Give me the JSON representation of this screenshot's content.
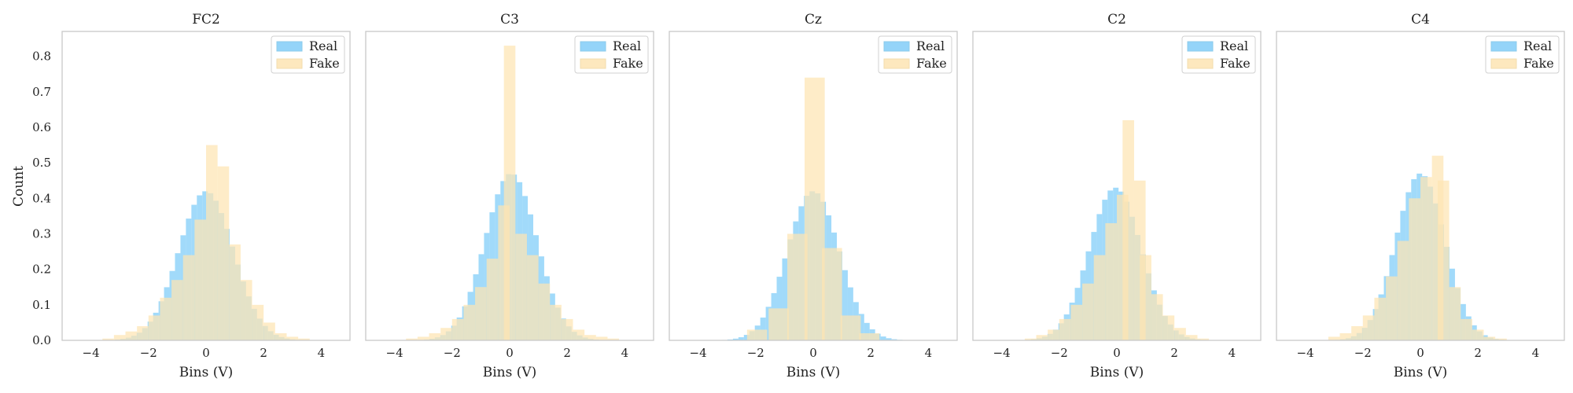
{
  "colors": {
    "real": "#81cdf8",
    "fake": "#fde4b3",
    "frame": "#c8c8c8"
  },
  "chart_data": {
    "type": "histogram",
    "ylabel": "Count",
    "xlabel": "Bins (V)",
    "xlim": [
      -5,
      5
    ],
    "ylim": [
      0,
      0.87
    ],
    "xticks": [
      -4,
      -2,
      0,
      2,
      4
    ],
    "yticks": [
      0.0,
      0.1,
      0.2,
      0.3,
      0.4,
      0.5,
      0.6,
      0.7,
      0.8
    ],
    "ytick_labels": [
      "0.0",
      "0.1",
      "0.2",
      "0.3",
      "0.4",
      "0.5",
      "0.6",
      "0.7",
      "0.8"
    ],
    "legend_position": "upper right",
    "grid": false,
    "panels": [
      {
        "title": "FC2",
        "xlabel": "Bins (V)",
        "series": [
          {
            "name": "Real",
            "sigma": 0.95,
            "peak": 0.42,
            "center": 0.0,
            "bin": 0.19,
            "range": [
              -4.5,
              4.5
            ]
          },
          {
            "name": "Fake",
            "bin_width": 0.4,
            "bins": [
              [
                -4.4,
                0.0
              ],
              [
                -3.6,
                0.005
              ],
              [
                -3.2,
                0.015
              ],
              [
                -2.8,
                0.025
              ],
              [
                -2.4,
                0.04
              ],
              [
                -2.0,
                0.07
              ],
              [
                -1.6,
                0.12
              ],
              [
                -1.2,
                0.17
              ],
              [
                -0.8,
                0.24
              ],
              [
                -0.4,
                0.34
              ],
              [
                0.0,
                0.55
              ],
              [
                0.4,
                0.49
              ],
              [
                0.8,
                0.27
              ],
              [
                1.2,
                0.17
              ],
              [
                1.6,
                0.1
              ],
              [
                2.0,
                0.05
              ],
              [
                2.4,
                0.02
              ],
              [
                2.8,
                0.01
              ],
              [
                3.2,
                0.005
              ],
              [
                3.6,
                0.0
              ]
            ]
          }
        ]
      },
      {
        "title": "C3",
        "xlabel": "Bins (V)",
        "series": [
          {
            "name": "Real",
            "sigma": 0.9,
            "peak": 0.47,
            "center": 0.05,
            "bin": 0.19,
            "range": [
              -4.5,
              4.5
            ]
          },
          {
            "name": "Fake",
            "bin_width": 0.4,
            "bins": [
              [
                -4.0,
                0.0
              ],
              [
                -3.6,
                0.005
              ],
              [
                -3.2,
                0.01
              ],
              [
                -2.8,
                0.02
              ],
              [
                -2.4,
                0.035
              ],
              [
                -2.0,
                0.06
              ],
              [
                -1.6,
                0.1
              ],
              [
                -1.2,
                0.15
              ],
              [
                -0.8,
                0.23
              ],
              [
                -0.4,
                0.38
              ],
              [
                -0.2,
                0.83
              ],
              [
                0.2,
                0.3
              ],
              [
                0.6,
                0.24
              ],
              [
                1.0,
                0.16
              ],
              [
                1.4,
                0.1
              ],
              [
                1.8,
                0.06
              ],
              [
                2.2,
                0.03
              ],
              [
                2.6,
                0.015
              ],
              [
                3.0,
                0.01
              ],
              [
                3.4,
                0.005
              ],
              [
                3.8,
                0.0
              ]
            ]
          }
        ]
      },
      {
        "title": "Cz",
        "xlabel": "Bins (V)",
        "series": [
          {
            "name": "Real",
            "sigma": 0.9,
            "peak": 0.42,
            "center": 0.0,
            "bin": 0.19,
            "range": [
              -4.5,
              4.5
            ]
          },
          {
            "name": "Fake",
            "bin_width": 0.7,
            "bins": [
              [
                -2.95,
                0.0
              ],
              [
                -2.3,
                0.03
              ],
              [
                -1.55,
                0.09
              ],
              [
                -0.9,
                0.3
              ],
              [
                -0.3,
                0.74
              ],
              [
                0.3,
                0.26
              ],
              [
                0.95,
                0.07
              ],
              [
                1.6,
                0.02
              ],
              [
                2.2,
                0.0
              ]
            ]
          }
        ]
      },
      {
        "title": "C2",
        "xlabel": "Bins (V)",
        "series": [
          {
            "name": "Real",
            "sigma": 0.9,
            "peak": 0.43,
            "center": -0.05,
            "bin": 0.19,
            "range": [
              -4.5,
              4.5
            ]
          },
          {
            "name": "Fake",
            "bin_width": 0.4,
            "bins": [
              [
                -4.0,
                0.0
              ],
              [
                -3.2,
                0.005
              ],
              [
                -2.8,
                0.015
              ],
              [
                -2.4,
                0.03
              ],
              [
                -2.0,
                0.06
              ],
              [
                -1.6,
                0.1
              ],
              [
                -1.2,
                0.16
              ],
              [
                -0.8,
                0.24
              ],
              [
                -0.4,
                0.33
              ],
              [
                0.0,
                0.41
              ],
              [
                0.2,
                0.62
              ],
              [
                0.6,
                0.45
              ],
              [
                0.8,
                0.24
              ],
              [
                1.2,
                0.13
              ],
              [
                1.6,
                0.07
              ],
              [
                2.0,
                0.035
              ],
              [
                2.4,
                0.015
              ],
              [
                2.8,
                0.005
              ],
              [
                3.2,
                0.0
              ]
            ]
          }
        ]
      },
      {
        "title": "C4",
        "xlabel": "Bins (V)",
        "series": [
          {
            "name": "Real",
            "sigma": 0.85,
            "peak": 0.47,
            "center": 0.0,
            "bin": 0.19,
            "range": [
              -4.5,
              4.5
            ]
          },
          {
            "name": "Fake",
            "bin_width": 0.4,
            "bins": [
              [
                -3.6,
                0.0
              ],
              [
                -3.2,
                0.01
              ],
              [
                -2.8,
                0.02
              ],
              [
                -2.4,
                0.04
              ],
              [
                -2.0,
                0.07
              ],
              [
                -1.6,
                0.12
              ],
              [
                -1.2,
                0.18
              ],
              [
                -0.8,
                0.28
              ],
              [
                -0.4,
                0.4
              ],
              [
                0.0,
                0.46
              ],
              [
                0.4,
                0.52
              ],
              [
                0.6,
                0.45
              ],
              [
                1.0,
                0.15
              ],
              [
                1.4,
                0.06
              ],
              [
                1.8,
                0.03
              ],
              [
                2.2,
                0.01
              ],
              [
                2.6,
                0.005
              ],
              [
                3.0,
                0.0
              ]
            ]
          }
        ]
      }
    ]
  }
}
